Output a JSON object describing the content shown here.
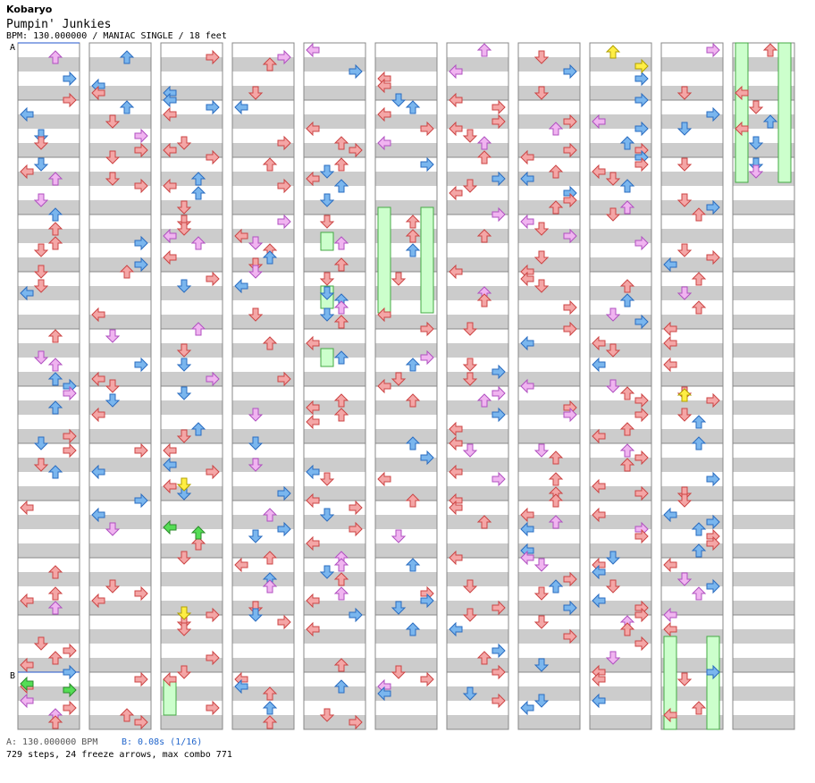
{
  "header": {
    "artist": "Kobaryo",
    "title": "Pumpin' Junkies",
    "bpm_line": "BPM: 130.000000 / MANIAC SINGLE / 18 feet"
  },
  "markers": {
    "a": "A",
    "b": "B"
  },
  "footer": {
    "a": "A: 130.000000 BPM",
    "b": "B: 0.08s (1/16)",
    "summary": "729 steps, 24 freeze arrows, max combo 771"
  },
  "colors": {
    "arrow_red": "#f4a6a6",
    "arrow_red_stroke": "#c44",
    "arrow_blue": "#7ab6ee",
    "arrow_blue_stroke": "#2a6cc0",
    "arrow_pink": "#f0b4f0",
    "arrow_pink_stroke": "#b050c0",
    "arrow_yellow": "#ffee44",
    "arrow_yellow_stroke": "#b0a000",
    "arrow_green": "#55dd55",
    "freeze_fill": "#ccffcc",
    "freeze_stroke": "#44aa44",
    "stripe": "#cccccc",
    "marker_line": "#2255cc"
  },
  "chart_data": {
    "type": "step-chart",
    "columns": 11,
    "lanes": [
      "left",
      "down",
      "up",
      "right"
    ],
    "steps": 729,
    "freeze_arrows": 24,
    "max_combo": 771,
    "bpm": 130.0
  }
}
